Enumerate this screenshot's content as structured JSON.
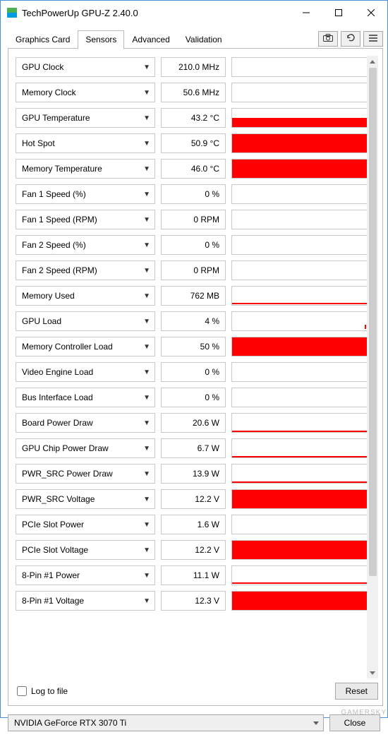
{
  "window": {
    "title": "TechPowerUp GPU-Z 2.40.0",
    "icon_colors": {
      "top": "#4cb050",
      "bottom": "#039be5"
    }
  },
  "tabs": [
    "Graphics Card",
    "Sensors",
    "Advanced",
    "Validation"
  ],
  "active_tab": "Sensors",
  "toolbar": {
    "screenshot_icon": "camera-icon",
    "refresh_icon": "refresh-icon",
    "menu_icon": "menu-icon"
  },
  "sensors": [
    {
      "label": "GPU Clock",
      "value": "210.0 MHz",
      "graph": "none"
    },
    {
      "label": "Memory Clock",
      "value": "50.6 MHz",
      "graph": "none"
    },
    {
      "label": "GPU Temperature",
      "value": "43.2 °C",
      "graph": "mid"
    },
    {
      "label": "Hot Spot",
      "value": "50.9 °C",
      "graph": "full"
    },
    {
      "label": "Memory Temperature",
      "value": "46.0 °C",
      "graph": "full"
    },
    {
      "label": "Fan 1 Speed (%)",
      "value": "0 %",
      "graph": "none"
    },
    {
      "label": "Fan 1 Speed (RPM)",
      "value": "0 RPM",
      "graph": "none"
    },
    {
      "label": "Fan 2 Speed (%)",
      "value": "0 %",
      "graph": "none"
    },
    {
      "label": "Fan 2 Speed (RPM)",
      "value": "0 RPM",
      "graph": "none"
    },
    {
      "label": "Memory Used",
      "value": "762 MB",
      "graph": "line"
    },
    {
      "label": "GPU Load",
      "value": "4 %",
      "graph": "dot"
    },
    {
      "label": "Memory Controller Load",
      "value": "50 %",
      "graph": "full"
    },
    {
      "label": "Video Engine Load",
      "value": "0 %",
      "graph": "none"
    },
    {
      "label": "Bus Interface Load",
      "value": "0 %",
      "graph": "none"
    },
    {
      "label": "Board Power Draw",
      "value": "20.6 W",
      "graph": "lowline"
    },
    {
      "label": "GPU Chip Power Draw",
      "value": "6.7 W",
      "graph": "lowline"
    },
    {
      "label": "PWR_SRC Power Draw",
      "value": "13.9 W",
      "graph": "lowline"
    },
    {
      "label": "PWR_SRC Voltage",
      "value": "12.2 V",
      "graph": "full"
    },
    {
      "label": "PCIe Slot Power",
      "value": "1.6 W",
      "graph": "none"
    },
    {
      "label": "PCIe Slot Voltage",
      "value": "12.2 V",
      "graph": "full"
    },
    {
      "label": "8-Pin #1 Power",
      "value": "11.1 W",
      "graph": "line"
    },
    {
      "label": "8-Pin #1 Voltage",
      "value": "12.3 V",
      "graph": "full"
    }
  ],
  "log_label": "Log to file",
  "reset_label": "Reset",
  "device_dropdown": "NVIDIA GeForce RTX 3070 Ti",
  "close_label": "Close",
  "colors": {
    "graph_fill": "#ff0000",
    "border": "#c8c8c8",
    "tab_border": "#b9b9b9",
    "window_border": "#4a90d9"
  },
  "watermark": "GAMERSKY"
}
